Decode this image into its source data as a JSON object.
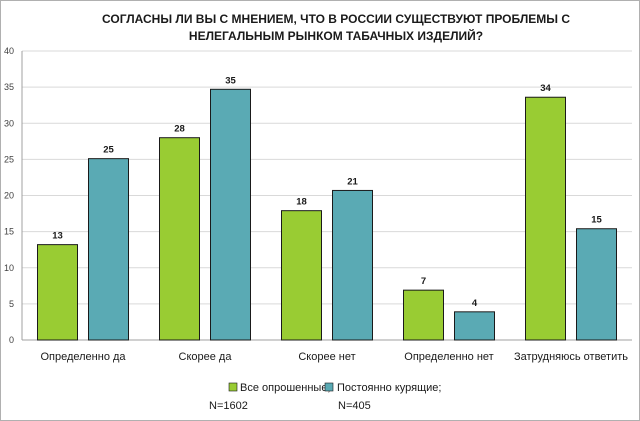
{
  "chart_data": {
    "type": "bar",
    "title": [
      "СОГЛАСНЫ  ЛИ ВЫ С МНЕНИЕМ,  ЧТО В РОССИИ СУЩЕСТВУЮТ ПРОБЛЕМЫ  С",
      "НЕЛЕГАЛЬНЫМ  РЫНКОМ ТАБАЧНЫХ ИЗДЕЛИЙ?"
    ],
    "categories": [
      "Определенно да",
      "Скорее да",
      "Скорее нет",
      "Определенно нет",
      "Затрудняюсь ответить"
    ],
    "series": [
      {
        "name": "Все опрошенные;",
        "sample": "N=1602",
        "color": "#99cc33",
        "values": [
          13,
          28,
          18,
          7,
          34
        ],
        "plot_values": [
          13.2,
          28,
          17.9,
          6.9,
          33.6
        ]
      },
      {
        "name": "Постоянно курящие;",
        "sample": "N=405",
        "color": "#5aaab4",
        "values": [
          25,
          35,
          21,
          4,
          15
        ],
        "plot_values": [
          25.1,
          34.7,
          20.7,
          3.9,
          15.4
        ]
      }
    ],
    "ylim": [
      0,
      40
    ],
    "yticks": [
      0,
      5,
      10,
      15,
      20,
      25,
      30,
      35,
      40
    ],
    "grid": true,
    "legend_position": "bottom-center"
  }
}
